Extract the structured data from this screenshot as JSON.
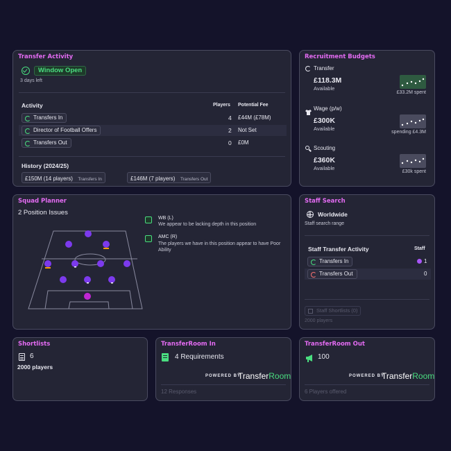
{
  "transfer_activity": {
    "title": "Transfer Activity",
    "window_status": "Window Open",
    "days_left": "3 days left",
    "table": {
      "headers": [
        "Activity",
        "Players",
        "Potential Fee"
      ],
      "rows": [
        {
          "label": "Transfers In",
          "players": "4",
          "fee": "£44M (£78M)"
        },
        {
          "label": "Director of Football Offers",
          "players": "2",
          "fee": "Not Set"
        },
        {
          "label": "Transfers Out",
          "players": "0",
          "fee": "£0M"
        }
      ]
    },
    "history_title": "History (2024/25)",
    "history": [
      {
        "amount": "£150M (14 players)",
        "label": "Transfers In"
      },
      {
        "amount": "£146M (7 players)",
        "label": "Transfers Out"
      }
    ]
  },
  "recruitment_budgets": {
    "title": "Recruitment Budgets",
    "items": [
      {
        "name": "Transfer",
        "amount": "£118.3M",
        "status": "Available",
        "note": "£33.2M spent",
        "icon": "refresh-icon",
        "spark_color": "#2e5a40"
      },
      {
        "name": "Wage (p/w)",
        "amount": "£300K",
        "status": "Available",
        "note": "spending £4.3M",
        "icon": "shirt-icon",
        "spark_color": "#4a4b5e"
      },
      {
        "name": "Scouting",
        "amount": "£360K",
        "status": "Available",
        "note": "£30k spent",
        "icon": "search-icon",
        "spark_color": "#4a4b5e"
      }
    ]
  },
  "squad_planner": {
    "title": "Squad Planner",
    "issues": "2 Position Issues",
    "positions": [
      {
        "pos": "WB (L)",
        "desc": "We appear to be lacking depth in this position"
      },
      {
        "pos": "AMC (R)",
        "desc": "The players we have in this position appear to have Poor Ability"
      }
    ]
  },
  "staff_search": {
    "title": "Staff Search",
    "scope": "Worldwide",
    "scope_label": "Staff search range",
    "activity_title": "Staff Transfer Activity",
    "staff_header": "Staff",
    "rows": [
      {
        "label": "Transfers In",
        "count": "1"
      },
      {
        "label": "Transfers Out",
        "count": "0"
      }
    ],
    "shortlists_button": "Staff Shortlists (0)",
    "players_count": "2000 players"
  },
  "shortlists": {
    "title": "Shortlists",
    "count": "6",
    "players": "2000 players"
  },
  "transferroom_in": {
    "title": "TransferRoom In",
    "requirements": "4 Requirements",
    "powered": "POWERED BY",
    "brand_a": "Transfer",
    "brand_b": "Room",
    "footer": "12 Responses"
  },
  "transferroom_out": {
    "title": "TransferRoom Out",
    "count": "100",
    "powered": "POWERED BY",
    "brand_a": "Transfer",
    "brand_b": "Room",
    "footer": "6 Players offered"
  }
}
